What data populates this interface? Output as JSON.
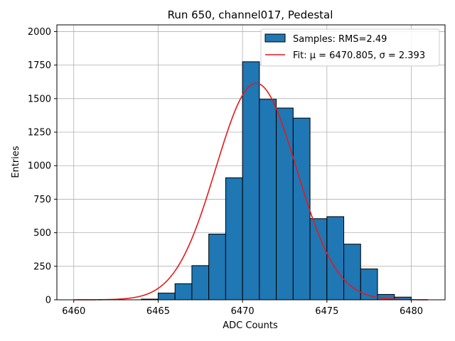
{
  "chart_data": {
    "type": "bar",
    "title": "Run 650, channel017, Pedestal",
    "xlabel": "ADC Counts",
    "ylabel": "Entries",
    "xlim": [
      6459,
      6482
    ],
    "ylim": [
      0,
      2050
    ],
    "xticks": [
      6460,
      6465,
      6470,
      6475,
      6480
    ],
    "yticks": [
      0,
      250,
      500,
      750,
      1000,
      1250,
      1500,
      1750,
      2000
    ],
    "grid": true,
    "legend_position": "top-right",
    "bar_color": "#1f77b4",
    "fit_color": "#e41a1c",
    "histogram": {
      "name": "Samples: RMS=2.49",
      "bins": [
        {
          "x0": 6464,
          "x1": 6465,
          "count": 5
        },
        {
          "x0": 6465,
          "x1": 6466,
          "count": 50
        },
        {
          "x0": 6466,
          "x1": 6467,
          "count": 120
        },
        {
          "x0": 6467,
          "x1": 6468,
          "count": 255
        },
        {
          "x0": 6468,
          "x1": 6469,
          "count": 490
        },
        {
          "x0": 6469,
          "x1": 6470,
          "count": 910
        },
        {
          "x0": 6470,
          "x1": 6471,
          "count": 1775
        },
        {
          "x0": 6471,
          "x1": 6472,
          "count": 1495
        },
        {
          "x0": 6472,
          "x1": 6473,
          "count": 1430
        },
        {
          "x0": 6473,
          "x1": 6474,
          "count": 1355
        },
        {
          "x0": 6474,
          "x1": 6475,
          "count": 605
        },
        {
          "x0": 6475,
          "x1": 6476,
          "count": 620
        },
        {
          "x0": 6476,
          "x1": 6477,
          "count": 415
        },
        {
          "x0": 6477,
          "x1": 6478,
          "count": 230
        },
        {
          "x0": 6478,
          "x1": 6479,
          "count": 40
        },
        {
          "x0": 6479,
          "x1": 6480,
          "count": 20
        }
      ]
    },
    "fit": {
      "name": "Fit: μ = 6470.805, σ = 2.393",
      "mu": 6470.805,
      "sigma": 2.393,
      "amplitude": 1615,
      "x_range": [
        6460,
        6481
      ]
    }
  }
}
